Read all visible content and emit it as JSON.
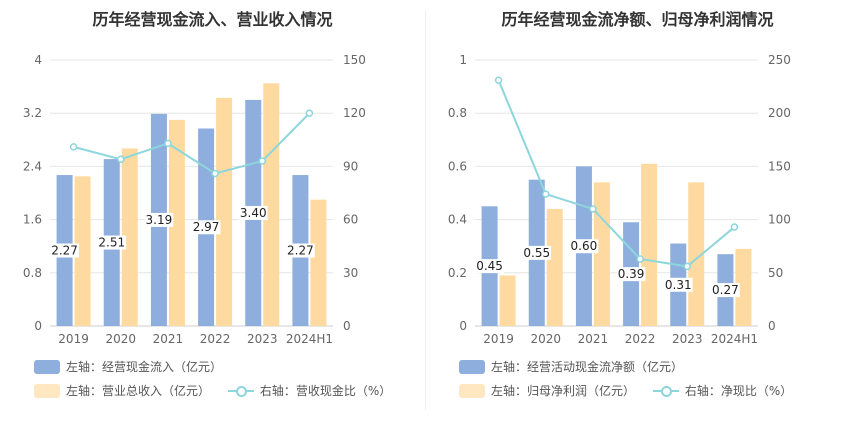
{
  "chart_data": [
    {
      "type": "bar",
      "title": "历年经营现金流入、营业收入情况",
      "categories": [
        "2019",
        "2020",
        "2021",
        "2022",
        "2023",
        "2024H1"
      ],
      "left_axis": {
        "ylim": [
          0,
          4
        ],
        "ticks": [
          "0",
          "0.8",
          "1.6",
          "2.4",
          "3.2",
          "4"
        ]
      },
      "right_axis": {
        "ylim": [
          0,
          150
        ],
        "ticks": [
          "0",
          "30",
          "60",
          "90",
          "120",
          "150"
        ]
      },
      "series": [
        {
          "name": "左轴：经营现金流入（亿元）",
          "type": "bar",
          "axis": "left",
          "color": "#8eaedd",
          "values": [
            2.27,
            2.51,
            3.19,
            2.97,
            3.4,
            2.27
          ],
          "labels": [
            "2.27",
            "2.51",
            "3.19",
            "2.97",
            "3.40",
            "2.27"
          ]
        },
        {
          "name": "左轴：营业总收入（亿元）",
          "type": "bar",
          "axis": "left",
          "color": "#fedaa1",
          "values": [
            2.25,
            2.67,
            3.1,
            3.43,
            3.65,
            1.9
          ]
        },
        {
          "name": "右轴：营收现金比（%）",
          "type": "line",
          "axis": "right",
          "color": "#8dd6dd",
          "values": [
            101,
            94,
            103,
            86,
            93,
            120
          ]
        }
      ],
      "grid": true,
      "legend_position": "bottom"
    },
    {
      "type": "bar",
      "title": "历年经营现金流净额、归母净利润情况",
      "categories": [
        "2019",
        "2020",
        "2021",
        "2022",
        "2023",
        "2024H1"
      ],
      "left_axis": {
        "ylim": [
          0,
          1
        ],
        "ticks": [
          "0",
          "0.2",
          "0.4",
          "0.6",
          "0.8",
          "1"
        ]
      },
      "right_axis": {
        "ylim": [
          0,
          250
        ],
        "ticks": [
          "0",
          "50",
          "100",
          "150",
          "200",
          "250"
        ]
      },
      "series": [
        {
          "name": "左轴：经营活动现金流净额（亿元）",
          "type": "bar",
          "axis": "left",
          "color": "#8eaedd",
          "values": [
            0.45,
            0.55,
            0.6,
            0.39,
            0.31,
            0.27
          ],
          "labels": [
            "0.45",
            "0.55",
            "0.60",
            "0.39",
            "0.31",
            "0.27"
          ]
        },
        {
          "name": "左轴：归母净利润（亿元）",
          "type": "bar",
          "axis": "left",
          "color": "#fedaa1",
          "values": [
            0.19,
            0.44,
            0.54,
            0.61,
            0.54,
            0.29
          ]
        },
        {
          "name": "右轴：净现比（%）",
          "type": "line",
          "axis": "right",
          "color": "#8dd6dd",
          "values": [
            231,
            124,
            110,
            63,
            56,
            93
          ]
        }
      ],
      "grid": true,
      "legend_position": "bottom"
    }
  ]
}
